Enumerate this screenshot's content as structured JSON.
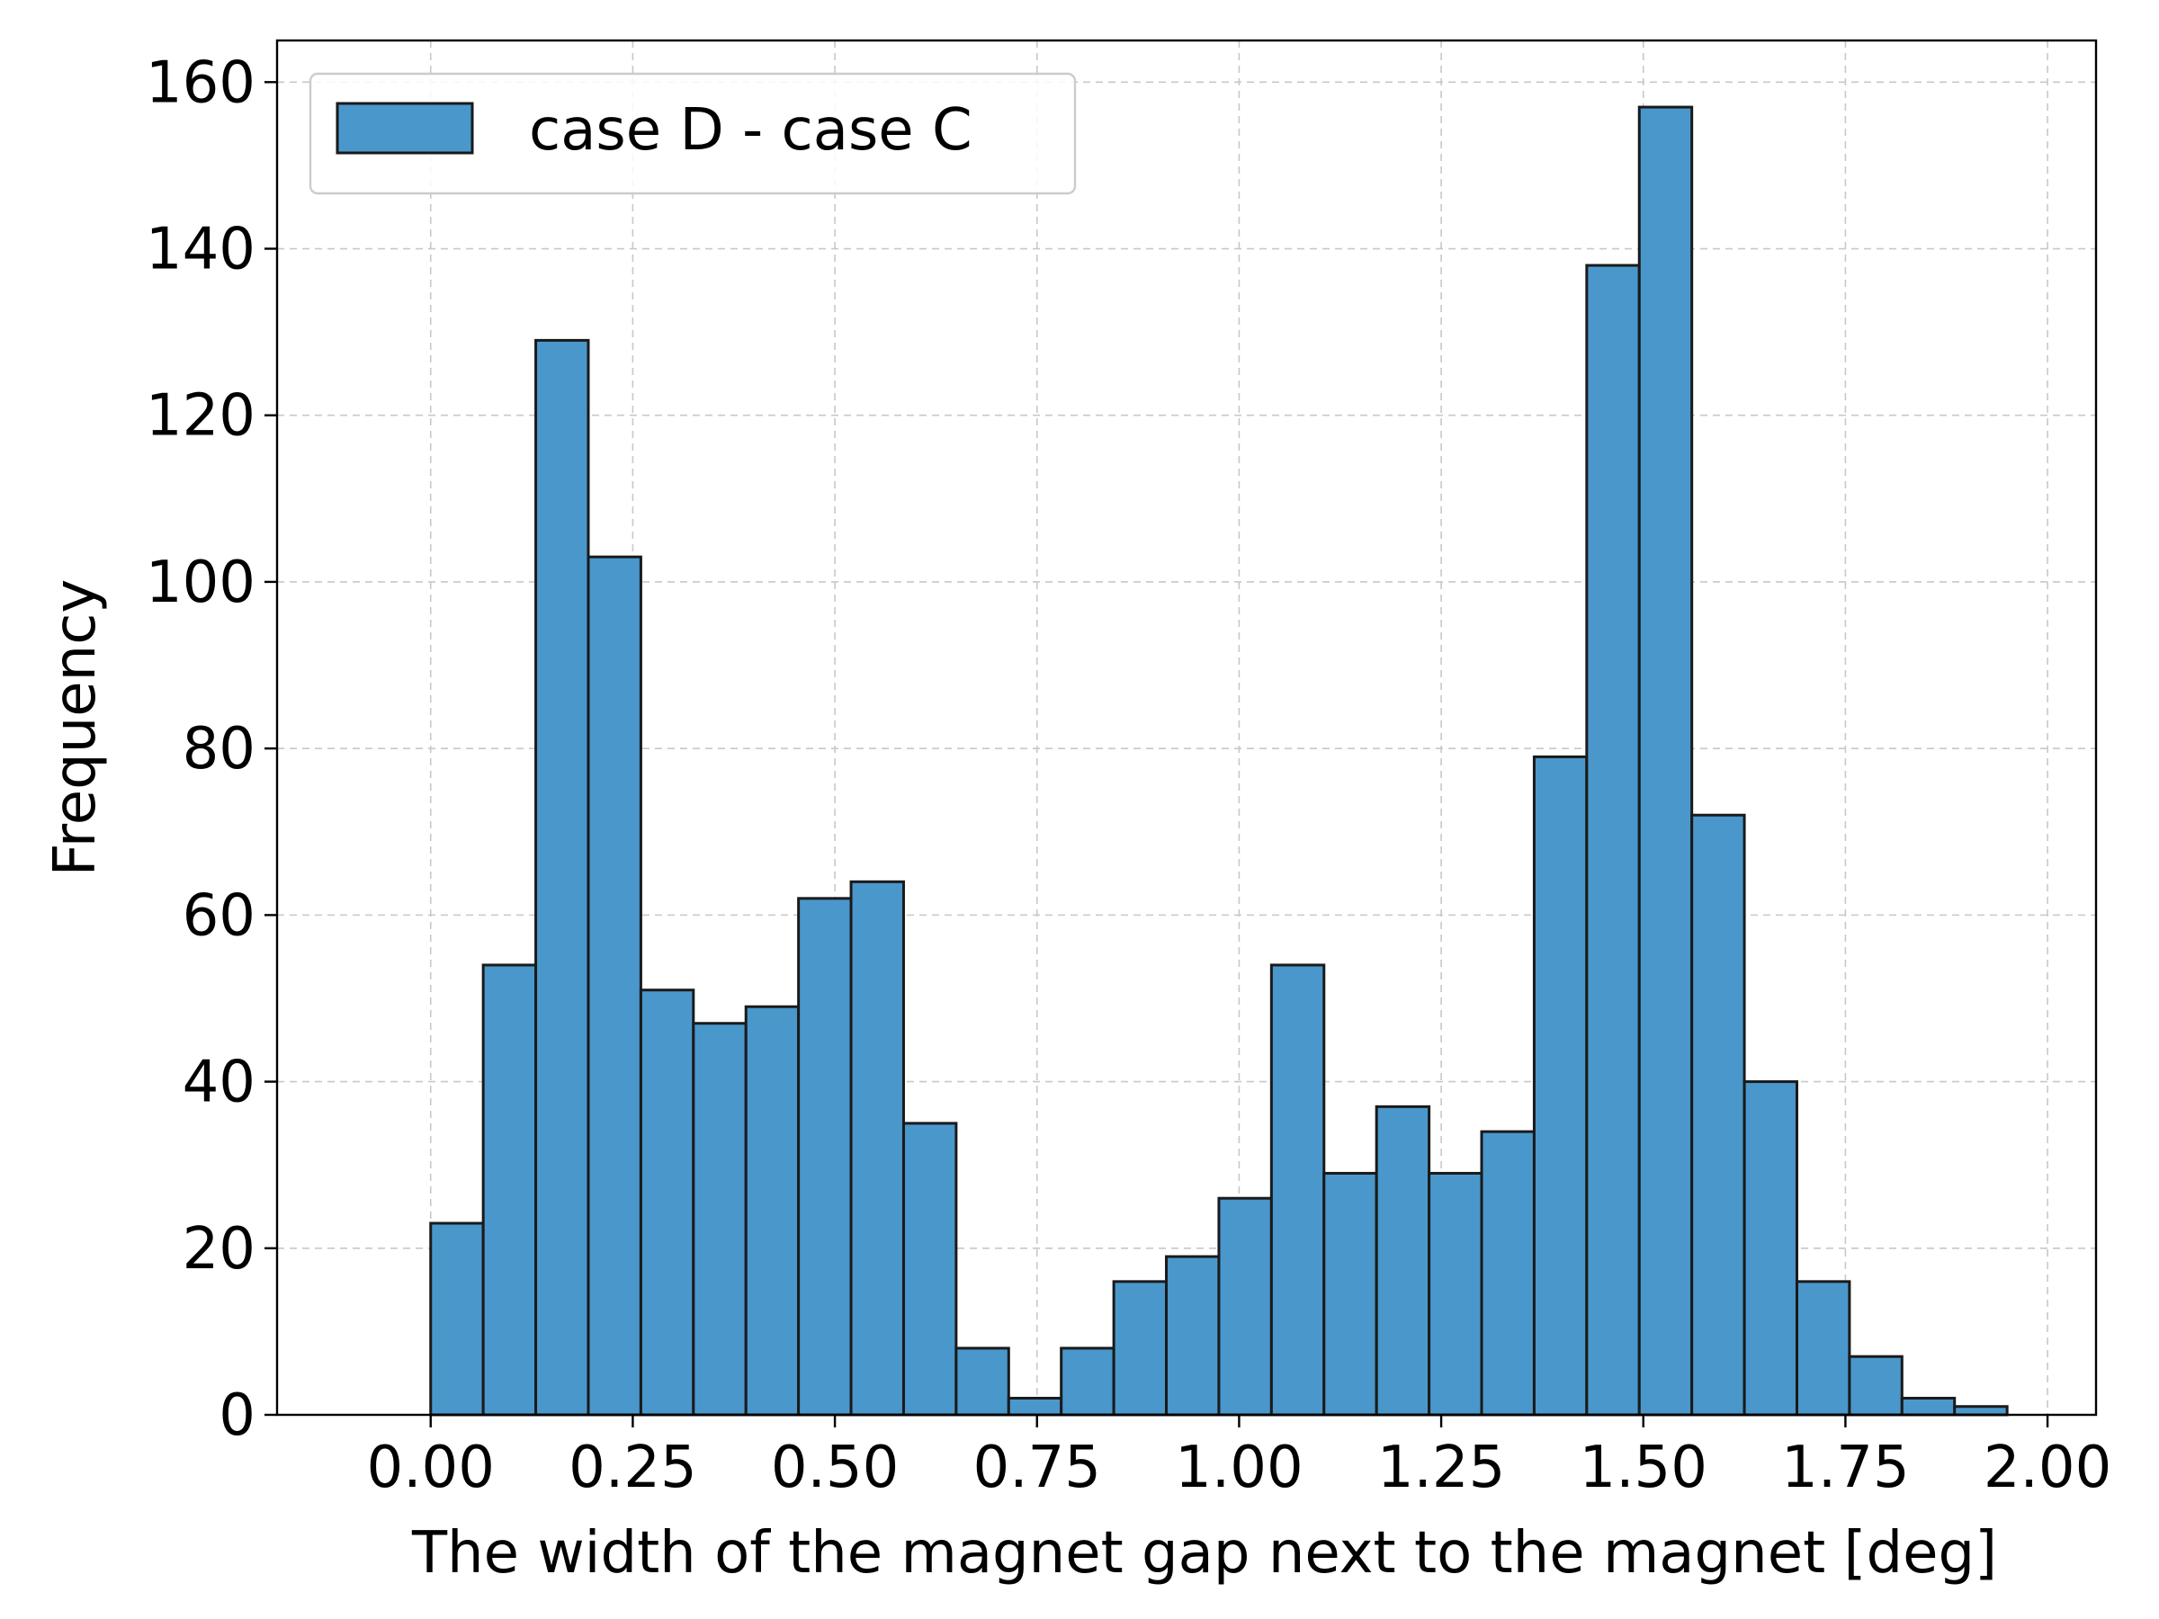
{
  "chart_data": {
    "type": "bar",
    "title": "",
    "xlabel": "The width of the magnet gap next to the magnet [deg]",
    "ylabel": "Frequency",
    "xlim": [
      -0.19,
      2.06
    ],
    "ylim": [
      0,
      165
    ],
    "x_ticks": [
      "0.00",
      "0.25",
      "0.50",
      "0.75",
      "1.00",
      "1.25",
      "1.50",
      "1.75",
      "2.00"
    ],
    "x_tick_values": [
      0,
      0.25,
      0.5,
      0.75,
      1.0,
      1.25,
      1.5,
      1.75,
      2.0
    ],
    "y_ticks": [
      "0",
      "20",
      "40",
      "60",
      "80",
      "100",
      "120",
      "140",
      "160"
    ],
    "y_tick_values": [
      0,
      20,
      40,
      60,
      80,
      100,
      120,
      140,
      160
    ],
    "grid": true,
    "legend_position": "top-left",
    "bin_start": 0.0,
    "bin_width": 0.065,
    "series": [
      {
        "name": "case D - case C",
        "color": "#4a97cb",
        "edge_color": "#1a1a1a",
        "values": [
          23,
          54,
          129,
          103,
          51,
          47,
          49,
          62,
          64,
          35,
          8,
          2,
          8,
          16,
          19,
          26,
          54,
          29,
          37,
          29,
          34,
          79,
          138,
          157,
          72,
          40,
          16,
          7,
          2,
          1
        ]
      }
    ]
  }
}
